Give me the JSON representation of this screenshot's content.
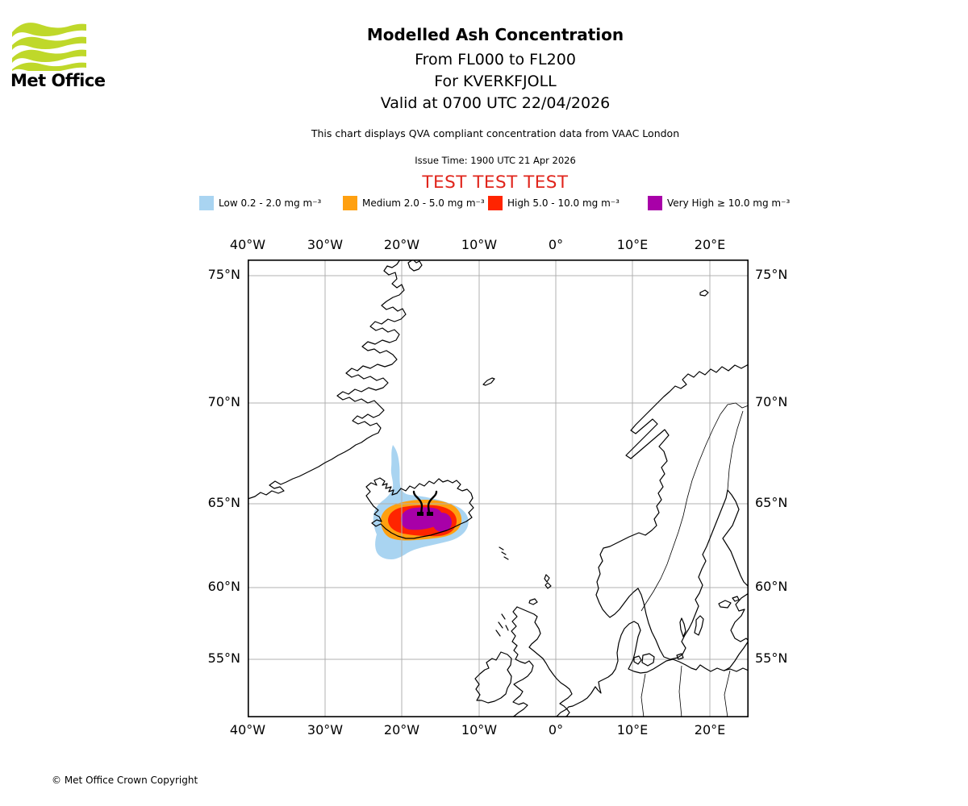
{
  "header": {
    "logo_text": "Met Office",
    "title": "Modelled Ash Concentration",
    "subtitle_fl": "From FL000 to FL200",
    "subtitle_volcano": "For KVERKFJOLL",
    "subtitle_valid": "Valid at 0700 UTC 22/04/2026",
    "disclaimer": "This chart displays QVA compliant concentration data from VAAC London",
    "issue_time": "Issue Time: 1900 UTC 21 Apr 2026",
    "test_banner": "TEST TEST TEST"
  },
  "legend": {
    "items": [
      {
        "name": "low",
        "label": "Low 0.2 - 2.0 mg m⁻³",
        "color": "#A9D4F1"
      },
      {
        "name": "medium",
        "label": "Medium 2.0 - 5.0 mg m⁻³",
        "color": "#FFA010"
      },
      {
        "name": "high",
        "label": "High 5.0 - 10.0 mg m⁻³",
        "color": "#FF2400"
      },
      {
        "name": "very-high",
        "label": "Very High ≥ 10.0 mg m⁻³",
        "color": "#A800A8"
      }
    ]
  },
  "map": {
    "lon_labels": [
      "40°W",
      "30°W",
      "20°W",
      "10°W",
      "0°",
      "10°E",
      "20°E"
    ],
    "lat_labels": [
      "75°N",
      "70°N",
      "65°N",
      "60°N",
      "55°N"
    ],
    "volcano_name": "KVERKFJOLL"
  },
  "footer": {
    "copyright": "© Met Office Crown Copyright"
  },
  "colors": {
    "test_red": "#E0251C",
    "logo_green": "#BFD82A",
    "grid_gray": "#B0B0B0"
  }
}
